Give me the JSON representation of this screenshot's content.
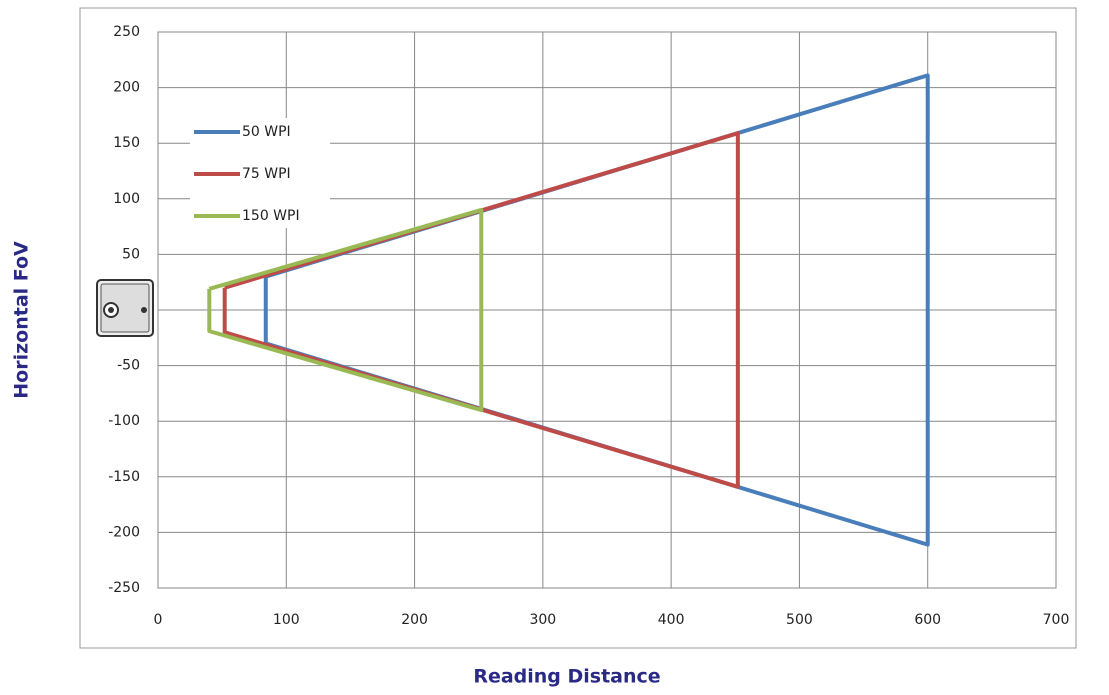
{
  "chart_data": {
    "type": "line",
    "x_label": "Reading Distance",
    "y_label": "Horizontal FoV",
    "xlim": [
      0,
      700
    ],
    "xticks": [
      0,
      100,
      200,
      300,
      400,
      500,
      600,
      700
    ],
    "ylim": [
      -250,
      250
    ],
    "yticks": [
      -250,
      -200,
      -150,
      -100,
      -50,
      0,
      50,
      100,
      150,
      200,
      250
    ],
    "grid": true,
    "legend": "upper left",
    "series": [
      {
        "name": "50 WPI",
        "color": "#4a7ebb",
        "x": [
          84,
          600,
          600,
          84,
          84
        ],
        "values": [
          30,
          211,
          -211,
          -30,
          30
        ]
      },
      {
        "name": "75 WPI",
        "color": "#be4b48",
        "x": [
          52,
          452,
          452,
          52,
          52
        ],
        "values": [
          20,
          159,
          -159,
          -20,
          20
        ]
      },
      {
        "name": "150 WPI",
        "color": "#98b954",
        "x": [
          40,
          252,
          252,
          40,
          40
        ],
        "values": [
          19,
          90,
          -90,
          -19,
          19
        ]
      }
    ]
  }
}
